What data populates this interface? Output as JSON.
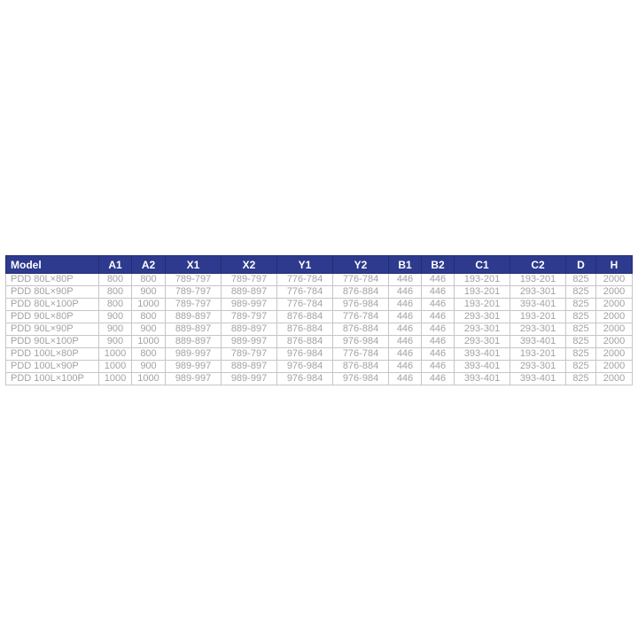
{
  "colors": {
    "header_bg": "#2d3a8d",
    "header_text": "#ffffff",
    "header_border": "#222e74",
    "row_text": "#a2a2a2",
    "row_border": "#c6c6c6",
    "page_bg": "#ffffff"
  },
  "table": {
    "columns": [
      "Model",
      "A1",
      "A2",
      "X1",
      "X2",
      "Y1",
      "Y2",
      "B1",
      "B2",
      "C1",
      "C2",
      "D",
      "H"
    ],
    "rows": [
      [
        "PDD 80L×80P",
        "800",
        "800",
        "789-797",
        "789-797",
        "776-784",
        "776-784",
        "446",
        "446",
        "193-201",
        "193-201",
        "825",
        "2000"
      ],
      [
        "PDD 80L×90P",
        "800",
        "900",
        "789-797",
        "889-897",
        "776-784",
        "876-884",
        "446",
        "446",
        "193-201",
        "293-301",
        "825",
        "2000"
      ],
      [
        "PDD 80L×100P",
        "800",
        "1000",
        "789-797",
        "989-997",
        "776-784",
        "976-984",
        "446",
        "446",
        "193-201",
        "393-401",
        "825",
        "2000"
      ],
      [
        "PDD 90L×80P",
        "900",
        "800",
        "889-897",
        "789-797",
        "876-884",
        "776-784",
        "446",
        "446",
        "293-301",
        "193-201",
        "825",
        "2000"
      ],
      [
        "PDD 90L×90P",
        "900",
        "900",
        "889-897",
        "889-897",
        "876-884",
        "876-884",
        "446",
        "446",
        "293-301",
        "293-301",
        "825",
        "2000"
      ],
      [
        "PDD 90L×100P",
        "900",
        "1000",
        "889-897",
        "989-997",
        "876-884",
        "976-984",
        "446",
        "446",
        "293-301",
        "393-401",
        "825",
        "2000"
      ],
      [
        "PDD 100L×80P",
        "1000",
        "800",
        "989-997",
        "789-797",
        "976-984",
        "776-784",
        "446",
        "446",
        "393-401",
        "193-201",
        "825",
        "2000"
      ],
      [
        "PDD 100L×90P",
        "1000",
        "900",
        "989-997",
        "889-897",
        "976-984",
        "876-884",
        "446",
        "446",
        "393-401",
        "293-301",
        "825",
        "2000"
      ],
      [
        "PDD 100L×100P",
        "1000",
        "1000",
        "989-997",
        "989-997",
        "976-984",
        "976-984",
        "446",
        "446",
        "393-401",
        "393-401",
        "825",
        "2000"
      ]
    ]
  }
}
